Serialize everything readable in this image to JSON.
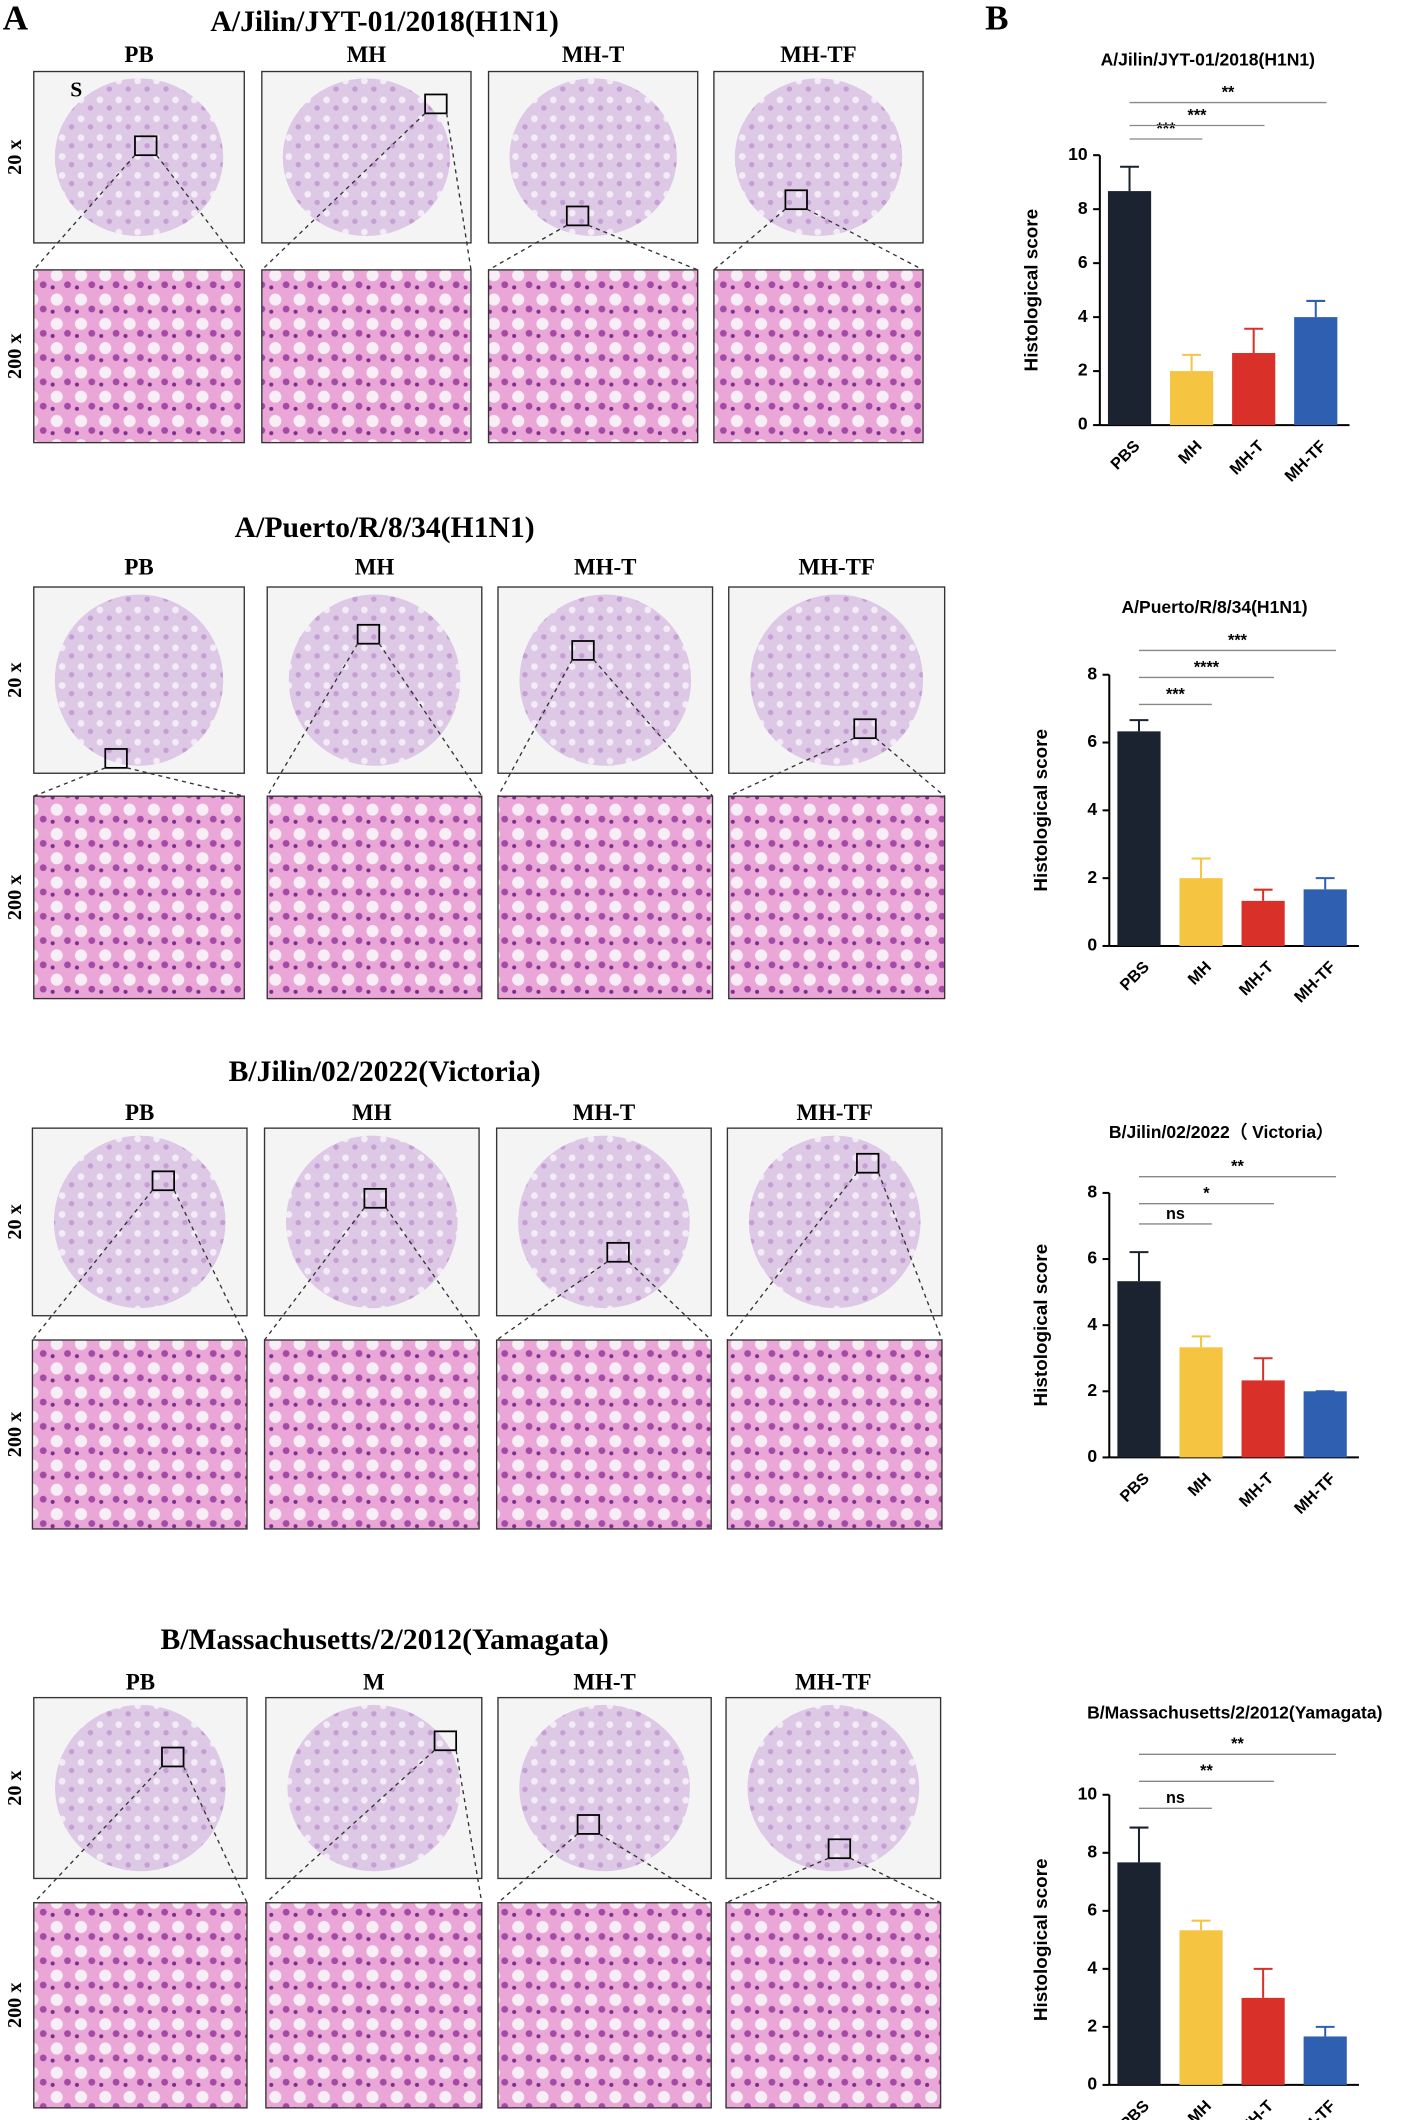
{
  "panel_labels": [
    "A",
    "B"
  ],
  "annotation": "S",
  "histology": [
    {
      "title": "A/Jilin/JYT-01/2018(H1N1)",
      "columns": [
        "PB",
        "MH",
        "MH-T",
        "MH-TF"
      ],
      "rows": [
        "20 x",
        "200 x"
      ]
    },
    {
      "title": "A/Puerto/R/8/34(H1N1)",
      "columns": [
        "PB",
        "MH",
        "MH-T",
        "MH-TF"
      ],
      "rows": [
        "20 x",
        "200 x"
      ]
    },
    {
      "title": "B/Jilin/02/2022(Victoria)",
      "columns": [
        "PB",
        "MH",
        "MH-T",
        "MH-TF"
      ],
      "rows": [
        "20 x",
        "200 x"
      ]
    },
    {
      "title": "B/Massachusetts/2/2012(Yamagata)",
      "columns": [
        "PB",
        "M",
        "MH-T",
        "MH-TF"
      ],
      "rows": [
        "20 x",
        "200 x"
      ]
    }
  ],
  "chart_data": [
    {
      "type": "bar",
      "title": "A/Jilin/JYT-01/2018(H1N1)",
      "y_label": "Histological score",
      "categories": [
        "PBS",
        "MH",
        "MH-T",
        "MH-TF"
      ],
      "values": [
        8.67,
        2,
        2.67,
        4
      ],
      "errors": [
        0.9,
        0.6,
        0.9,
        0.6
      ],
      "colors": [
        "#1b2230",
        "#f5c542",
        "#d9312a",
        "#2f5fb0"
      ],
      "ylim": [
        0,
        10
      ],
      "yticks": [
        0,
        2,
        4,
        6,
        8,
        10
      ],
      "significance": [
        "***",
        "***",
        "**"
      ]
    },
    {
      "type": "bar",
      "title": "A/Puerto/R/8/34(H1N1)",
      "y_label": "Histological score",
      "categories": [
        "PBS",
        "MH",
        "MH-T",
        "MH-TF"
      ],
      "values": [
        6.33,
        2,
        1.33,
        1.67
      ],
      "errors": [
        0.33,
        0.58,
        0.33,
        0.33
      ],
      "colors": [
        "#1b2230",
        "#f5c542",
        "#d9312a",
        "#2f5fb0"
      ],
      "ylim": [
        0,
        8
      ],
      "yticks": [
        0,
        2,
        4,
        6,
        8
      ],
      "significance": [
        "***",
        "****",
        "***"
      ]
    },
    {
      "type": "bar",
      "title": "B/Jilin/02/2022（ Victoria）",
      "y_label": "Histological score",
      "categories": [
        "PBS",
        "MH",
        "MH-T",
        "MH-TF"
      ],
      "values": [
        5.33,
        3.33,
        2.33,
        2
      ],
      "errors": [
        0.88,
        0.33,
        0.67,
        0
      ],
      "colors": [
        "#1b2230",
        "#f5c542",
        "#d9312a",
        "#2f5fb0"
      ],
      "ylim": [
        0,
        8
      ],
      "yticks": [
        0,
        2,
        4,
        6,
        8
      ],
      "significance": [
        "ns",
        "*",
        "**"
      ]
    },
    {
      "type": "bar",
      "title": "B/Massachusetts/2/2012(Yamagata)",
      "y_label": "Histological score",
      "categories": [
        "PBS",
        "MH",
        "MH-T",
        "MH-TF"
      ],
      "values": [
        7.67,
        5.33,
        3,
        1.67
      ],
      "errors": [
        1.2,
        0.33,
        1,
        0.33
      ],
      "colors": [
        "#1b2230",
        "#f5c542",
        "#d9312a",
        "#2f5fb0"
      ],
      "ylim": [
        0,
        10
      ],
      "yticks": [
        0,
        2,
        4,
        6,
        8,
        10
      ],
      "significance": [
        "ns",
        "**",
        "**"
      ]
    }
  ]
}
